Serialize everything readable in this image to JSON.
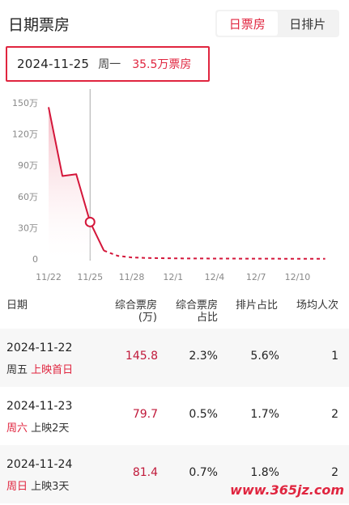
{
  "header": {
    "title": "日期票房",
    "tabs": [
      {
        "label": "日票房",
        "active": true
      },
      {
        "label": "日排片",
        "active": false
      }
    ]
  },
  "selection": {
    "date": "2024-11-25",
    "weekday": "周一",
    "value": "35.5万票房"
  },
  "chart_data": {
    "type": "line",
    "x_ticks": [
      "11/22",
      "11/25",
      "11/28",
      "12/1",
      "12/4",
      "12/7",
      "12/10"
    ],
    "y_ticks": [
      "150万",
      "120万",
      "90万",
      "60万",
      "30万",
      "0"
    ],
    "ylim": [
      0,
      150
    ],
    "unit": "万",
    "series": [
      {
        "x": [
          "11/22",
          "11/23",
          "11/24",
          "11/25",
          "11/26",
          "11/27",
          "11/28",
          "11/29",
          "11/30",
          "12/1",
          "12/2",
          "12/3",
          "12/4",
          "12/5",
          "12/6",
          "12/7",
          "12/8",
          "12/9",
          "12/10",
          "12/11",
          "12/12"
        ],
        "values": [
          145.8,
          79.7,
          81.4,
          35.5,
          8,
          3,
          1.5,
          1,
          0.8,
          0.6,
          0.5,
          0.5,
          0.4,
          0.4,
          0.3,
          0.3,
          0.3,
          0.2,
          0.2,
          0.2,
          0.2
        ],
        "color": "#d4163a"
      }
    ],
    "actual_until_index": 4,
    "highlight_index": 3,
    "grid": false
  },
  "table": {
    "headers": [
      {
        "line1": "日期",
        "line2": ""
      },
      {
        "line1": "综合票房",
        "line2": "(万)"
      },
      {
        "line1": "综合票房",
        "line2": "占比"
      },
      {
        "line1": "排片占比",
        "line2": ""
      },
      {
        "line1": "场均人次",
        "line2": ""
      }
    ],
    "rows": [
      {
        "date": "2024-11-22",
        "weekday": "周五",
        "weekday_red": false,
        "note": "上映首日",
        "note_red": true,
        "box": "145.8",
        "share": "2.3%",
        "sched": "5.6%",
        "avg": "1"
      },
      {
        "date": "2024-11-23",
        "weekday": "周六",
        "weekday_red": true,
        "note": "上映2天",
        "note_red": false,
        "box": "79.7",
        "share": "0.5%",
        "sched": "1.7%",
        "avg": "2"
      },
      {
        "date": "2024-11-24",
        "weekday": "周日",
        "weekday_red": true,
        "note": "上映3天",
        "note_red": false,
        "box": "81.4",
        "share": "0.7%",
        "sched": "1.8%",
        "avg": "2"
      }
    ]
  },
  "watermark": "www.365jz.com"
}
